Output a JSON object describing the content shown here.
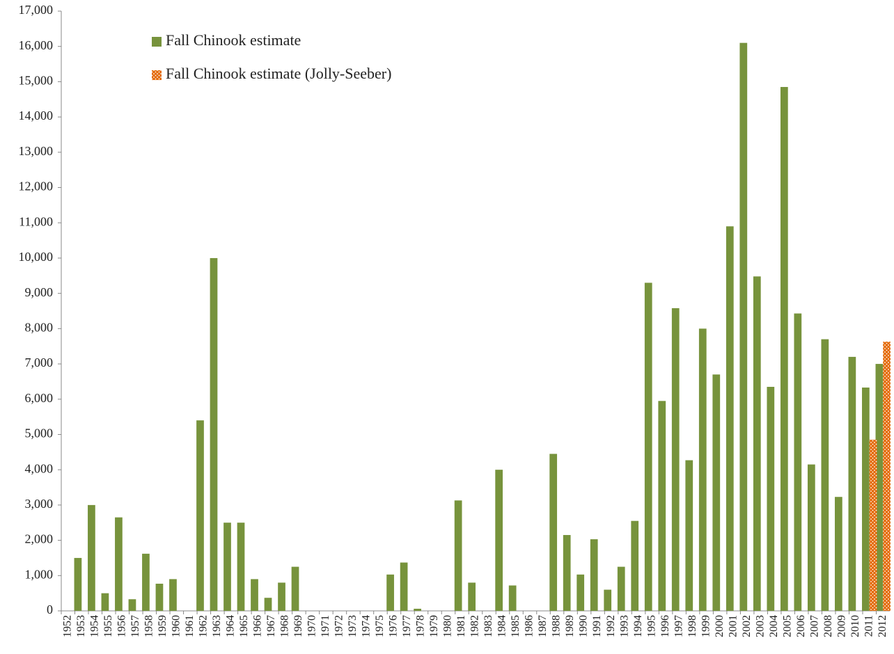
{
  "chart_data": {
    "type": "bar",
    "categories": [
      "1952",
      "1953",
      "1954",
      "1955",
      "1956",
      "1957",
      "1958",
      "1959",
      "1960",
      "1961",
      "1962",
      "1963",
      "1964",
      "1965",
      "1966",
      "1967",
      "1968",
      "1969",
      "1970",
      "1971",
      "1972",
      "1973",
      "1974",
      "1975",
      "1976",
      "1977",
      "1978",
      "1979",
      "1980",
      "1981",
      "1982",
      "1983",
      "1984",
      "1985",
      "1986",
      "1987",
      "1988",
      "1989",
      "1990",
      "1991",
      "1992",
      "1993",
      "1994",
      "1995",
      "1996",
      "1997",
      "1998",
      "1999",
      "2000",
      "2001",
      "2002",
      "2003",
      "2004",
      "2005",
      "2006",
      "2007",
      "2008",
      "2009",
      "2010",
      "2011",
      "2012"
    ],
    "series": [
      {
        "name": "Fall Chinook estimate",
        "color": "#77933c",
        "values": [
          null,
          1500,
          3000,
          500,
          2650,
          330,
          1620,
          770,
          900,
          null,
          5400,
          10000,
          2500,
          2500,
          900,
          370,
          800,
          1250,
          null,
          null,
          null,
          null,
          null,
          null,
          1030,
          1370,
          60,
          null,
          null,
          3130,
          800,
          null,
          4000,
          720,
          null,
          null,
          4450,
          2150,
          1030,
          2030,
          600,
          1250,
          2550,
          9300,
          5950,
          8580,
          4270,
          8000,
          6700,
          10900,
          16100,
          9480,
          6350,
          14850,
          8430,
          4150,
          7700,
          3230,
          7200,
          6330,
          7000
        ]
      },
      {
        "name": "Fall Chinook estimate (Jolly-Seeber)",
        "color": "#e46c0a",
        "pattern": "dots",
        "values": [
          null,
          null,
          null,
          null,
          null,
          null,
          null,
          null,
          null,
          null,
          null,
          null,
          null,
          null,
          null,
          null,
          null,
          null,
          null,
          null,
          null,
          null,
          null,
          null,
          null,
          null,
          null,
          null,
          null,
          null,
          null,
          null,
          null,
          null,
          null,
          null,
          null,
          null,
          null,
          null,
          null,
          null,
          null,
          null,
          null,
          null,
          null,
          null,
          null,
          null,
          null,
          null,
          null,
          null,
          null,
          null,
          null,
          null,
          null,
          4850,
          7630
        ]
      }
    ],
    "ylim": [
      0,
      17000
    ],
    "yticks": [
      0,
      {
        "value": 1000,
        "label": "1,000"
      },
      {
        "value": 2000,
        "label": "2,000"
      },
      {
        "value": 3000,
        "label": "3,000"
      },
      {
        "value": 4000,
        "label": "4,000"
      },
      {
        "value": 5000,
        "label": "5,000"
      },
      {
        "value": 6000,
        "label": "6,000"
      },
      {
        "value": 7000,
        "label": "7,000"
      },
      {
        "value": 8000,
        "label": "8,000"
      },
      {
        "value": 9000,
        "label": "9,000"
      },
      {
        "value": 10000,
        "label": "10,000"
      },
      {
        "value": 11000,
        "label": "11,000"
      },
      {
        "value": 12000,
        "label": "12,000"
      },
      {
        "value": 13000,
        "label": "13,000"
      },
      {
        "value": 14000,
        "label": "14,000"
      },
      {
        "value": 15000,
        "label": "15,000"
      },
      {
        "value": 16000,
        "label": "16,000"
      },
      {
        "value": 17000,
        "label": "17,000"
      }
    ],
    "grid": false
  }
}
